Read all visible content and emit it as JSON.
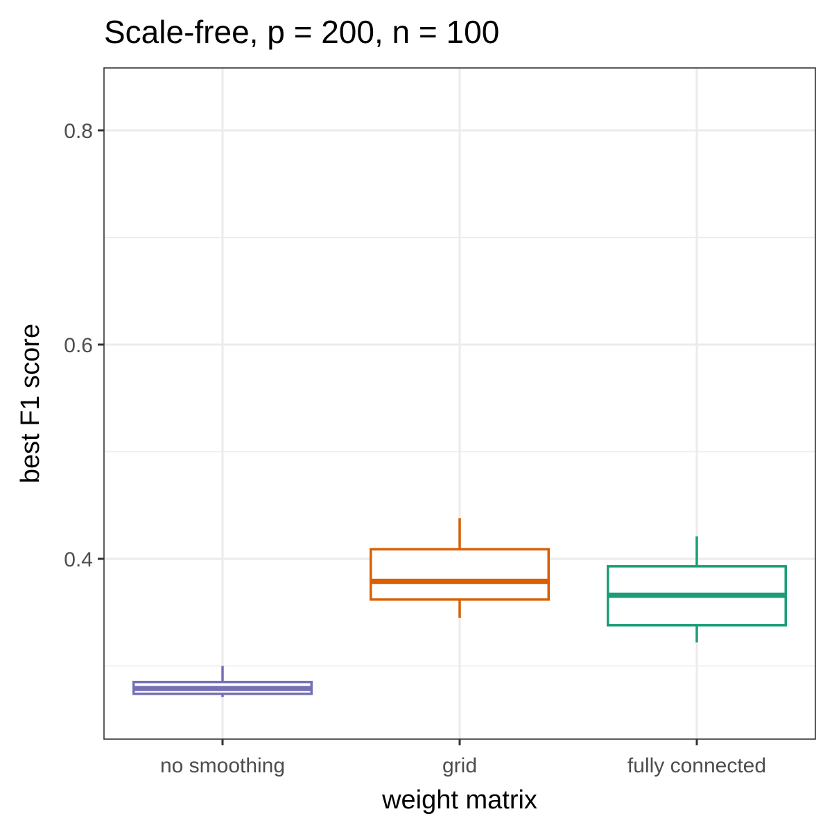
{
  "chart_data": {
    "type": "boxplot",
    "title": "Scale-free, p = 200, n = 100",
    "xlabel": "weight matrix",
    "ylabel": "best F1 score",
    "ylim": [
      0.258,
      0.858
    ],
    "yticks": [
      0.4,
      0.6,
      0.8
    ],
    "ytick_labels": [
      "0.4",
      "0.6",
      "0.8"
    ],
    "minor_yticks": [
      0.3,
      0.5,
      0.7
    ],
    "grid": true,
    "legend": "none",
    "categories": [
      "no smoothing",
      "grid",
      "fully connected"
    ],
    "boxes": [
      {
        "category": "no smoothing",
        "whisker_low": 0.271,
        "q1": 0.274,
        "median": 0.279,
        "q3": 0.285,
        "whisker_high": 0.3,
        "color": "#7570b3"
      },
      {
        "category": "grid",
        "whisker_low": 0.345,
        "q1": 0.362,
        "median": 0.379,
        "q3": 0.409,
        "whisker_high": 0.438,
        "color": "#d95f02"
      },
      {
        "category": "fully connected",
        "whisker_low": 0.322,
        "q1": 0.338,
        "median": 0.366,
        "q3": 0.393,
        "whisker_high": 0.421,
        "color": "#1b9e77"
      }
    ]
  }
}
